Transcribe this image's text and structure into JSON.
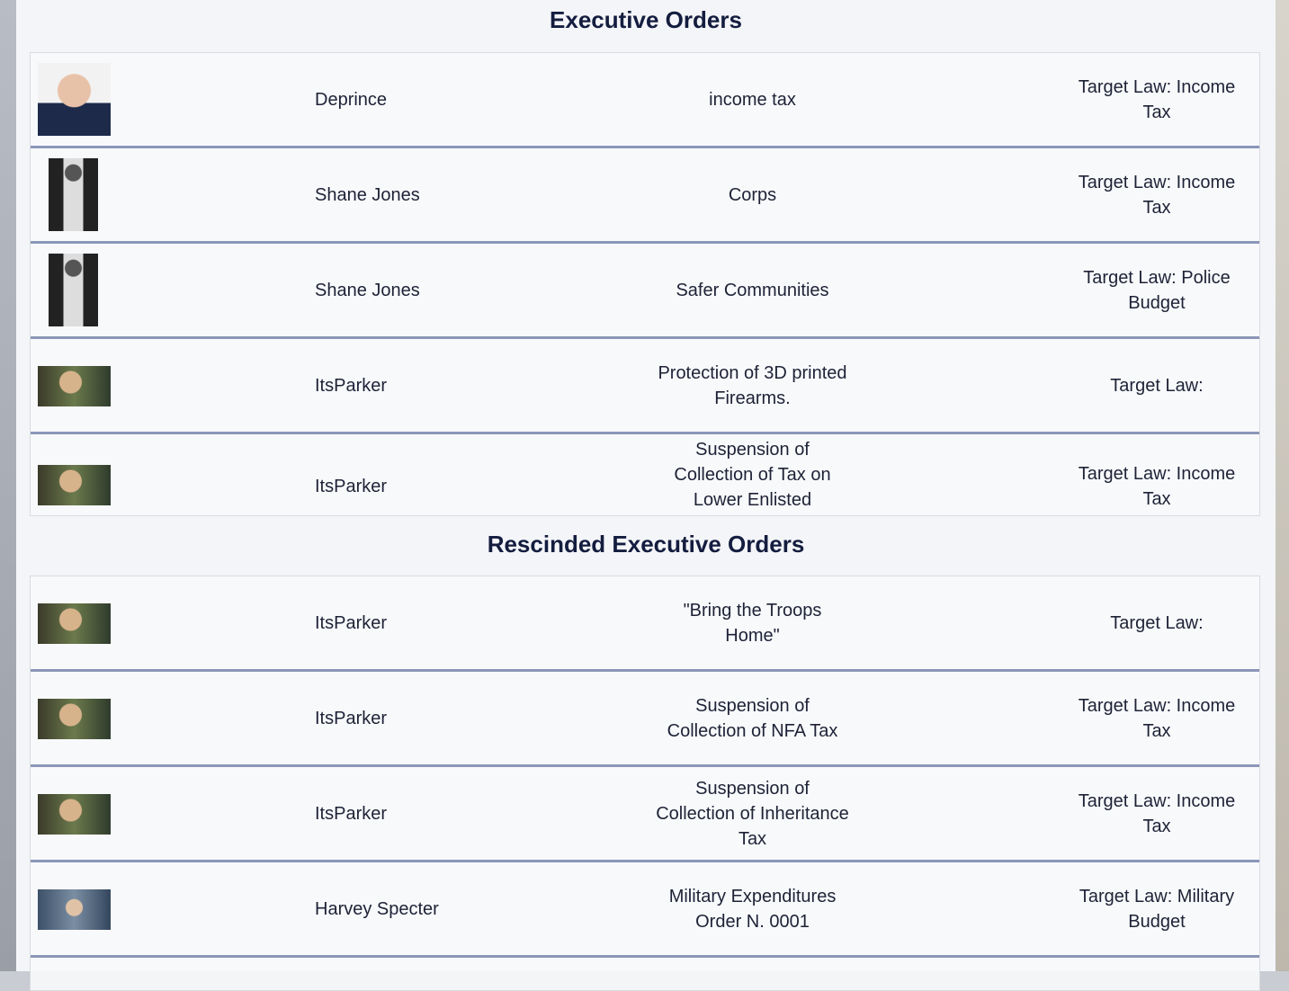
{
  "sections": [
    {
      "title": "Executive Orders",
      "rows": [
        {
          "name": "Deprince",
          "order": "income tax",
          "target": "Target Law: Income Tax"
        },
        {
          "name": "Shane Jones",
          "order": "Corps",
          "target": "Target Law: Income Tax"
        },
        {
          "name": "Shane Jones",
          "order": "Safer Communities",
          "target": "Target Law: Police Budget"
        },
        {
          "name": "ItsParker",
          "order": "Protection of 3D printed Firearms.",
          "target": "Target Law:"
        },
        {
          "name": "ItsParker",
          "order": "Suspension of Collection of Tax on Lower Enlisted",
          "target": "Target Law: Income Tax"
        }
      ]
    },
    {
      "title": "Rescinded Executive Orders",
      "rows": [
        {
          "name": "ItsParker",
          "order": "\"Bring the Troops Home\"",
          "target": "Target Law:"
        },
        {
          "name": "ItsParker",
          "order": "Suspension of Collection of NFA Tax",
          "target": "Target Law: Income Tax"
        },
        {
          "name": "ItsParker",
          "order": "Suspension of Collection of Inheritance Tax",
          "target": "Target Law: Income Tax"
        },
        {
          "name": "Harvey Specter",
          "order": "Military Expenditures Order N. 0001",
          "target": "Target Law: Military Budget"
        }
      ]
    }
  ]
}
